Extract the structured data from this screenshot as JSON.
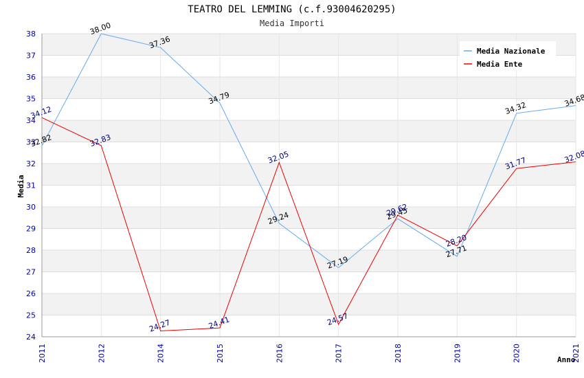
{
  "title": "TEATRO DEL LEMMING (c.f.93004620295)",
  "subtitle": "Media Importi",
  "chart_data": {
    "type": "line",
    "categories": [
      "2011",
      "2012",
      "2014",
      "2015",
      "2016",
      "2017",
      "2018",
      "2019",
      "2020",
      "2021"
    ],
    "series": [
      {
        "name": "Media Nazionale",
        "color": "#66aaee",
        "values": [
          32.82,
          38.0,
          37.36,
          34.79,
          29.24,
          27.19,
          29.45,
          27.71,
          34.32,
          34.68
        ],
        "labels": [
          "32.82",
          "38.00",
          "37.36",
          "34.79",
          "29.24",
          "27.19",
          "29.45",
          "27.71",
          "34.32",
          "34.68"
        ]
      },
      {
        "name": "Media Ente",
        "color": "#ee0000",
        "values": [
          34.12,
          32.83,
          24.27,
          24.41,
          32.05,
          24.57,
          29.62,
          28.2,
          31.77,
          32.08
        ],
        "labels": [
          "34.12",
          "32.83",
          "24.27",
          "24.41",
          "32.05",
          "24.57",
          "29.62",
          "28.20",
          "31.77",
          "32.08"
        ]
      }
    ],
    "ylim": [
      24,
      38
    ],
    "yticks": [
      24,
      25,
      26,
      27,
      28,
      29,
      30,
      31,
      32,
      33,
      34,
      35,
      36,
      37,
      38
    ],
    "ylabel": "Media",
    "xlabel": "Anno",
    "grid": true,
    "legend_position": "top-right"
  }
}
